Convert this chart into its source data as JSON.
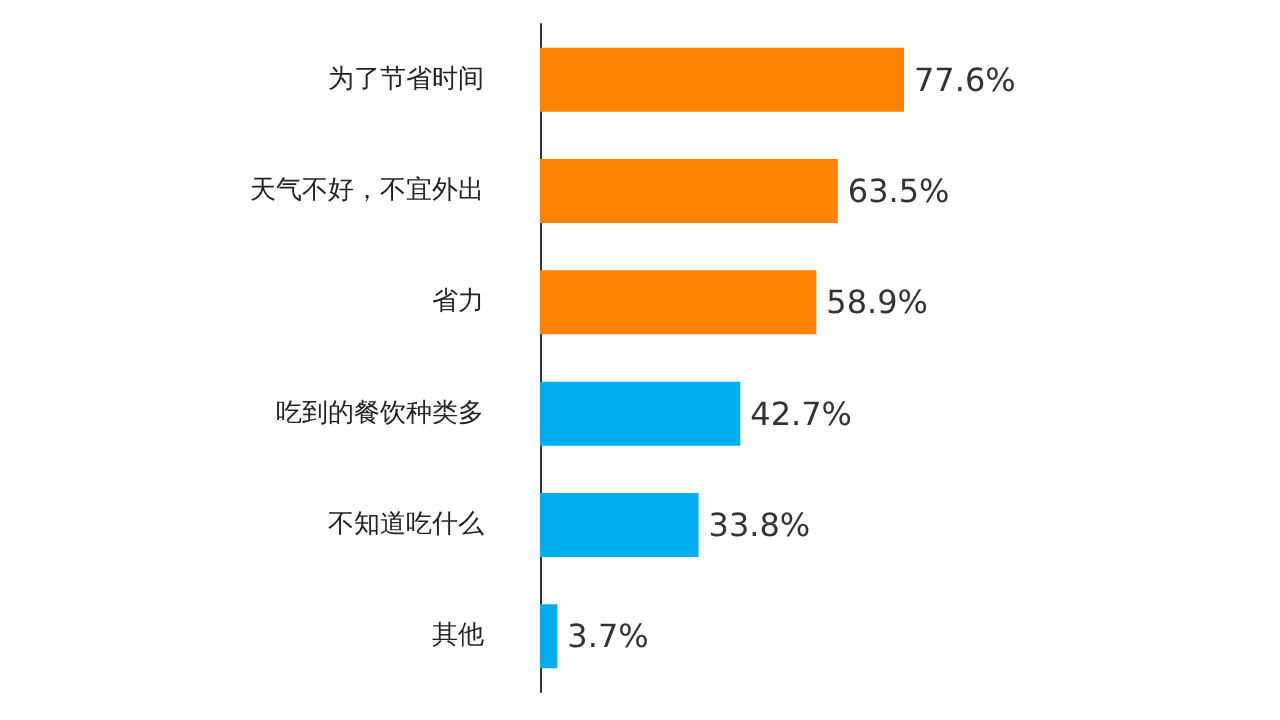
{
  "chart_data": {
    "type": "bar",
    "orientation": "horizontal",
    "categories": [
      "为了节省时间",
      "天气不好，不宜外出",
      "省力",
      "吃到的餐饮种类多",
      "不知道吃什么",
      "其他"
    ],
    "values": [
      77.6,
      63.5,
      58.9,
      42.7,
      33.8,
      3.7
    ],
    "colors": [
      "#ff8200",
      "#ff8200",
      "#ff8200",
      "#00aeef",
      "#00aeef",
      "#00aeef"
    ],
    "value_labels": [
      "77.6%",
      "63.5%",
      "58.9%",
      "42.7%",
      "33.8%",
      "3.7%"
    ]
  }
}
